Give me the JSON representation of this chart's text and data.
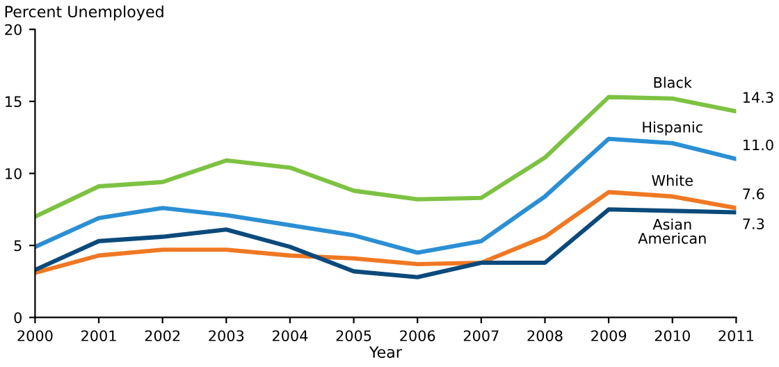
{
  "chart_data": {
    "type": "line",
    "xlabel": "Year",
    "ylabel": "Percent Unemployed",
    "x": [
      2000,
      2001,
      2002,
      2003,
      2004,
      2005,
      2006,
      2007,
      2008,
      2009,
      2010,
      2011
    ],
    "xlim": [
      2000,
      2011
    ],
    "xticks": [
      2000,
      2001,
      2002,
      2003,
      2004,
      2005,
      2006,
      2007,
      2008,
      2009,
      2010,
      2011
    ],
    "ylim": [
      0,
      20
    ],
    "yticks": [
      0,
      5,
      10,
      15,
      20
    ],
    "grid": false,
    "legend": false,
    "marker": "none",
    "line_style": "solid",
    "series": [
      {
        "name": "Black",
        "color": "#7dc242",
        "values": [
          7.0,
          9.1,
          9.4,
          10.9,
          10.4,
          8.8,
          8.2,
          8.3,
          11.1,
          15.3,
          15.2,
          14.3
        ],
        "value_labels": [
          null,
          null,
          null,
          null,
          null,
          null,
          null,
          null,
          null,
          null,
          null,
          "14.3"
        ]
      },
      {
        "name": "Hispanic",
        "color": "#2b8fd4",
        "values": [
          4.9,
          6.9,
          7.6,
          7.1,
          6.4,
          5.7,
          4.5,
          5.3,
          8.4,
          12.4,
          12.1,
          11.0
        ],
        "value_labels": [
          null,
          null,
          null,
          null,
          null,
          null,
          null,
          null,
          null,
          null,
          null,
          "11.0"
        ]
      },
      {
        "name": "White",
        "color": "#f07823",
        "values": [
          3.1,
          4.3,
          4.7,
          4.7,
          4.3,
          4.1,
          3.7,
          3.8,
          5.6,
          8.7,
          8.4,
          7.6
        ],
        "value_labels": [
          null,
          null,
          null,
          null,
          null,
          null,
          null,
          null,
          null,
          null,
          null,
          "7.6"
        ]
      },
      {
        "name": "Asian\nAmerican",
        "color": "#0b4a7b",
        "values": [
          3.3,
          5.3,
          5.6,
          6.1,
          4.9,
          3.2,
          2.8,
          3.8,
          3.8,
          7.5,
          7.4,
          7.3
        ],
        "value_labels": [
          null,
          null,
          null,
          null,
          null,
          null,
          null,
          null,
          null,
          null,
          null,
          "7.3"
        ]
      }
    ]
  }
}
